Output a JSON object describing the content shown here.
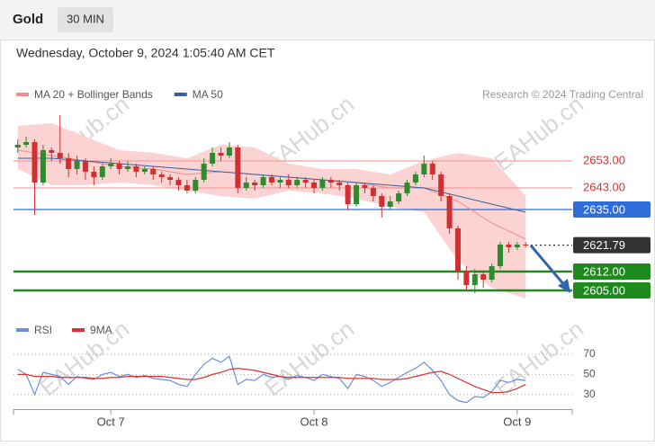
{
  "header": {
    "symbol": "Gold",
    "interval": "30 MIN",
    "timestamp": "Wednesday, October 9, 2024 1:05:40 AM CET"
  },
  "watermark": "EAHub.cn",
  "chart_data": [
    {
      "type": "candlestick",
      "credit": "Research © 2024 Trading Central",
      "xlim": [
        -0.5,
        65.5
      ],
      "ylim": [
        2598,
        2672
      ],
      "up_color": "#2e8b2e",
      "down_color": "#d03030",
      "open": [
        2658,
        2659,
        2660,
        2645,
        2657,
        2656,
        2654,
        2650,
        2653,
        2649,
        2647,
        2651,
        2652,
        2650,
        2651,
        2649,
        2650,
        2648,
        2647,
        2646,
        2644,
        2642,
        2646,
        2652,
        2656,
        2655,
        2658,
        2643,
        2645,
        2644,
        2647,
        2645,
        2646,
        2644,
        2646,
        2645,
        2643,
        2646,
        2645,
        2644,
        2637,
        2644,
        2643,
        2640,
        2636,
        2638,
        2641,
        2645,
        2648,
        2652,
        2648,
        2640,
        2628,
        2612,
        2607,
        2611,
        2609,
        2614,
        2622,
        2621,
        2622
      ],
      "high": [
        2661,
        2662,
        2661,
        2659,
        2658,
        2670,
        2656,
        2655,
        2654,
        2651,
        2652,
        2654,
        2653,
        2653,
        2652,
        2651,
        2651,
        2649,
        2648,
        2647,
        2646,
        2647,
        2654,
        2658,
        2658,
        2660,
        2659,
        2647,
        2646,
        2648,
        2648,
        2647,
        2648,
        2647,
        2647,
        2646,
        2647,
        2647,
        2646,
        2645,
        2645,
        2645,
        2644,
        2641,
        2640,
        2642,
        2646,
        2649,
        2655,
        2653,
        2649,
        2641,
        2629,
        2614,
        2613,
        2612,
        2615,
        2623,
        2623,
        2623,
        2623
      ],
      "low": [
        2656,
        2658,
        2633,
        2644,
        2653,
        2652,
        2647,
        2648,
        2646,
        2644,
        2646,
        2650,
        2648,
        2649,
        2647,
        2648,
        2646,
        2645,
        2644,
        2642,
        2641,
        2641,
        2645,
        2651,
        2653,
        2654,
        2641,
        2642,
        2642,
        2643,
        2644,
        2643,
        2643,
        2643,
        2643,
        2641,
        2642,
        2643,
        2642,
        2635,
        2636,
        2641,
        2638,
        2632,
        2635,
        2637,
        2640,
        2644,
        2647,
        2646,
        2638,
        2626,
        2609,
        2605,
        2604,
        2606,
        2608,
        2613,
        2619,
        2620,
        2621
      ],
      "close": [
        2659,
        2660,
        2645,
        2657,
        2656,
        2654,
        2650,
        2653,
        2649,
        2647,
        2651,
        2652,
        2650,
        2651,
        2649,
        2650,
        2648,
        2647,
        2646,
        2644,
        2642,
        2646,
        2652,
        2656,
        2655,
        2658,
        2643,
        2645,
        2644,
        2647,
        2645,
        2646,
        2644,
        2646,
        2645,
        2643,
        2646,
        2645,
        2644,
        2637,
        2644,
        2643,
        2640,
        2636,
        2638,
        2641,
        2645,
        2648,
        2652,
        2648,
        2640,
        2628,
        2612,
        2607,
        2611,
        2609,
        2614,
        2622,
        2621,
        2622,
        2621.79
      ],
      "series": [
        {
          "name": "MA 20 + Bollinger Bands",
          "color": "#f28b8b",
          "band_color": "#fbd3d3",
          "x": [
            0,
            4,
            8,
            12,
            16,
            20,
            24,
            28,
            32,
            36,
            40,
            44,
            48,
            52,
            56,
            60
          ],
          "values": [
            2657,
            2655,
            2653,
            2651,
            2650,
            2648,
            2649,
            2648,
            2647,
            2646,
            2645,
            2643,
            2643,
            2638,
            2630,
            2624
          ],
          "upper": [
            2666,
            2667,
            2662,
            2657,
            2656,
            2654,
            2659,
            2658,
            2652,
            2650,
            2650,
            2648,
            2653,
            2656,
            2654,
            2640
          ],
          "lower": [
            2650,
            2644,
            2644,
            2645,
            2644,
            2642,
            2640,
            2639,
            2642,
            2641,
            2639,
            2636,
            2634,
            2616,
            2606,
            2602
          ]
        },
        {
          "name": "MA 50",
          "color": "#3a5fa0",
          "x": [
            0,
            4,
            8,
            12,
            16,
            20,
            24,
            28,
            32,
            36,
            40,
            44,
            48,
            52,
            56,
            60
          ],
          "values": [
            2654,
            2654,
            2653,
            2652,
            2651,
            2650,
            2649,
            2648,
            2647,
            2646,
            2645,
            2644,
            2643,
            2640,
            2637,
            2634
          ]
        }
      ],
      "levels": [
        {
          "value": 2653,
          "label": "2653.00",
          "color": "#f4a0a0",
          "text_color": "#e03030",
          "style": "text"
        },
        {
          "value": 2643,
          "label": "2643.00",
          "color": "#f4a0a0",
          "text_color": "#e03030",
          "style": "text"
        },
        {
          "value": 2635,
          "label": "2635.00",
          "color": "#2f6dd8",
          "style": "box"
        },
        {
          "value": 2621.79,
          "label": "2621.79",
          "color": "#333333",
          "style": "box",
          "dashed": true
        },
        {
          "value": 2612,
          "label": "2612.00",
          "color": "#1e8a1e",
          "style": "box"
        },
        {
          "value": 2605,
          "label": "2605.00",
          "color": "#1e8a1e",
          "style": "box"
        }
      ]
    },
    {
      "type": "line",
      "xlim": [
        -0.5,
        65.5
      ],
      "ylim": [
        20,
        78
      ],
      "yticks": [
        30,
        50,
        70
      ],
      "grid": true,
      "xticks": [
        {
          "value": 11,
          "label": "Oct 7"
        },
        {
          "value": 35,
          "label": "Oct 8"
        },
        {
          "value": 59,
          "label": "Oct 9"
        }
      ],
      "series": [
        {
          "name": "RSI",
          "color": "#6a8fe0",
          "values": [
            55,
            50,
            30,
            52,
            50,
            48,
            40,
            48,
            46,
            45,
            50,
            52,
            48,
            50,
            47,
            49,
            46,
            45,
            44,
            40,
            38,
            50,
            60,
            66,
            62,
            68,
            40,
            45,
            44,
            50,
            47,
            48,
            45,
            49,
            47,
            44,
            50,
            48,
            46,
            36,
            50,
            48,
            44,
            38,
            42,
            47,
            52,
            56,
            62,
            54,
            44,
            30,
            24,
            22,
            28,
            27,
            33,
            44,
            42,
            45,
            44
          ]
        },
        {
          "name": "9MA",
          "color": "#e03030",
          "values": [
            50,
            50,
            48,
            48,
            48,
            47,
            47,
            47,
            47,
            46,
            46,
            47,
            47,
            48,
            48,
            48,
            48,
            48,
            47,
            46,
            45,
            45,
            47,
            50,
            52,
            55,
            56,
            55,
            54,
            52,
            50,
            48,
            47,
            47,
            47,
            47,
            47,
            47,
            47,
            46,
            46,
            46,
            46,
            45,
            45,
            45,
            46,
            48,
            50,
            52,
            53,
            50,
            46,
            42,
            38,
            35,
            32,
            32,
            33,
            36,
            40
          ]
        }
      ]
    }
  ]
}
